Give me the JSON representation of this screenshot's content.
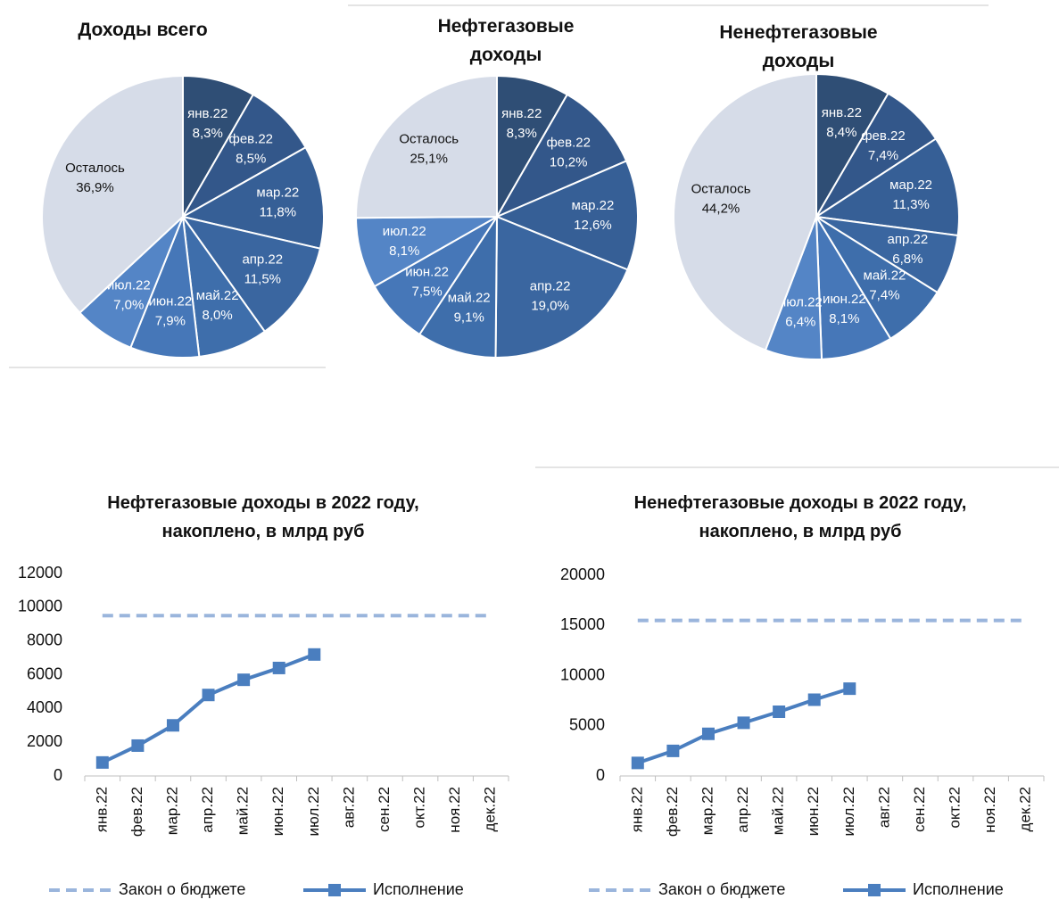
{
  "chart_data": [
    {
      "type": "pie",
      "title": "Доходы всего",
      "categories": [
        "янв.22",
        "фев.22",
        "мар.22",
        "апр.22",
        "май.22",
        "июн.22",
        "июл.22",
        "Осталось"
      ],
      "values": [
        8.3,
        8.5,
        11.8,
        11.5,
        8.0,
        7.9,
        7.0,
        36.9
      ],
      "value_labels": [
        "8,3%",
        "8,5%",
        "11,8%",
        "11,5%",
        "8,0%",
        "7,9%",
        "7,0%",
        "36,9%"
      ],
      "colors": [
        "#2f4e75",
        "#33578a",
        "#365f96",
        "#3a66a0",
        "#3e6eab",
        "#4677b8",
        "#5485c6",
        "#d6dce8"
      ]
    },
    {
      "type": "pie",
      "title": "Нефтегазовые доходы",
      "categories": [
        "янв.22",
        "фев.22",
        "мар.22",
        "апр.22",
        "май.22",
        "июн.22",
        "июл.22",
        "Осталось"
      ],
      "values": [
        8.3,
        10.2,
        12.6,
        19.0,
        9.1,
        7.5,
        8.1,
        25.1
      ],
      "value_labels": [
        "8,3%",
        "10,2%",
        "12,6%",
        "19,0%",
        "9,1%",
        "7,5%",
        "8,1%",
        "25,1%"
      ],
      "colors": [
        "#2f4e75",
        "#33578a",
        "#365f96",
        "#3a66a0",
        "#3e6eab",
        "#4677b8",
        "#5485c6",
        "#d6dce8"
      ]
    },
    {
      "type": "pie",
      "title": "Ненефтегазовые доходы",
      "categories": [
        "янв.22",
        "фев.22",
        "мар.22",
        "апр.22",
        "май.22",
        "июн.22",
        "июл.22",
        "Осталось"
      ],
      "values": [
        8.4,
        7.4,
        11.3,
        6.8,
        7.4,
        8.1,
        6.4,
        44.2
      ],
      "value_labels": [
        "8,4%",
        "7,4%",
        "11,3%",
        "6,8%",
        "7,4%",
        "8,1%",
        "6,4%",
        "44,2%"
      ],
      "colors": [
        "#2f4e75",
        "#33578a",
        "#365f96",
        "#3a66a0",
        "#3e6eab",
        "#4677b8",
        "#5485c6",
        "#d6dce8"
      ]
    },
    {
      "type": "line",
      "title": "Нефтегазовые доходы в 2022 году, накоплено, в млрд руб",
      "categories": [
        "янв.22",
        "фев.22",
        "мар.22",
        "апр.22",
        "май.22",
        "июн.22",
        "июл.22",
        "авг.22",
        "сен.22",
        "окт.22",
        "ноя.22",
        "дек.22"
      ],
      "series": [
        {
          "name": "Закон о бюджете",
          "color": "#9ab5dc",
          "dashed": true,
          "values": [
            9500,
            9500,
            9500,
            9500,
            9500,
            9500,
            9500,
            9500,
            9500,
            9500,
            9500,
            9500
          ]
        },
        {
          "name": "Исполнение",
          "color": "#4a7ebf",
          "markers": true,
          "values": [
            800,
            1800,
            3000,
            4800,
            5700,
            6400,
            7200,
            null,
            null,
            null,
            null,
            null
          ]
        }
      ],
      "ylim": [
        0,
        12000
      ],
      "yticks": [
        0,
        2000,
        4000,
        6000,
        8000,
        10000,
        12000
      ],
      "legend": "bottom"
    },
    {
      "type": "line",
      "title": "Ненефтегазовые доходы в 2022 году, накоплено, в млрд руб",
      "categories": [
        "янв.22",
        "фев.22",
        "мар.22",
        "апр.22",
        "май.22",
        "июн.22",
        "июл.22",
        "авг.22",
        "сен.22",
        "окт.22",
        "ноя.22",
        "дек.22"
      ],
      "series": [
        {
          "name": "Закон о бюджете",
          "color": "#9ab5dc",
          "dashed": true,
          "values": [
            15500,
            15500,
            15500,
            15500,
            15500,
            15500,
            15500,
            15500,
            15500,
            15500,
            15500,
            15500
          ]
        },
        {
          "name": "Исполнение",
          "color": "#4a7ebf",
          "markers": true,
          "values": [
            1300,
            2500,
            4200,
            5300,
            6400,
            7600,
            8700,
            null,
            null,
            null,
            null,
            null
          ]
        }
      ],
      "ylim": [
        0,
        20000
      ],
      "yticks": [
        0,
        5000,
        10000,
        15000,
        20000
      ],
      "legend": "bottom"
    }
  ]
}
